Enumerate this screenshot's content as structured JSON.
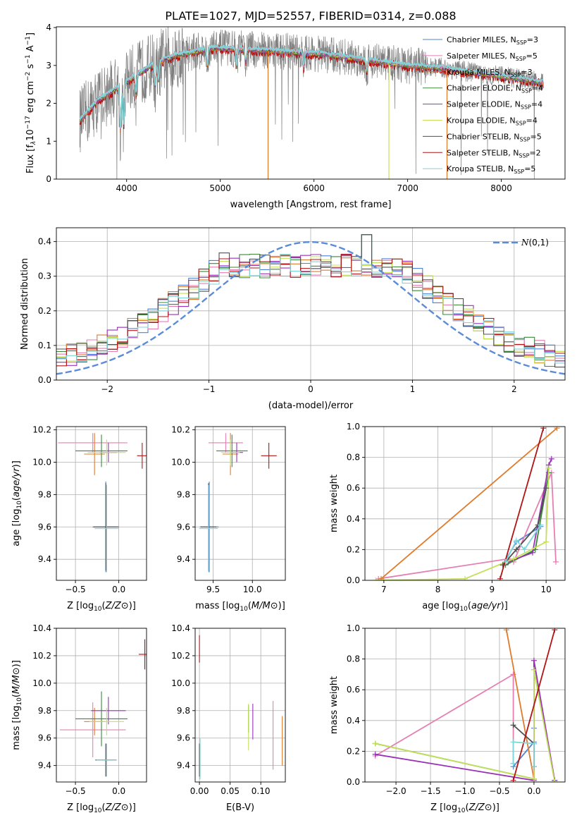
{
  "figure_title": "PLATE=1027, MJD=52557, FIBERID=0314, z=0.088",
  "colors": {
    "Chabrier MILES": "#4f81d8",
    "Salpeter MILES": "#e57fb3",
    "Kroupa MILES": "#e07b2c",
    "Chabrier ELODIE": "#3a8a3a",
    "Salpeter ELODIE": "#9a30b8",
    "Kroupa ELODIE": "#c5e05a",
    "Chabrier STELIB": "#505050",
    "Salpeter STELIB": "#b21414",
    "Kroupa STELIB": "#7fd6d9"
  },
  "chart_data": [
    {
      "id": "spectrum",
      "type": "line",
      "xlabel": "wavelength [Angstrom, rest frame]",
      "ylabel_parts": [
        "Flux [f",
        "λ",
        "10",
        "−17",
        " erg cm",
        "−2",
        " s",
        "−1",
        " A",
        "−1",
        "]"
      ],
      "xlim": [
        3250,
        8680
      ],
      "ylim": [
        0,
        4.02
      ],
      "xticks": [
        4000,
        5000,
        6000,
        7000,
        8000
      ],
      "yticks": [
        0,
        1,
        2,
        3,
        4
      ],
      "legend": [
        {
          "name": "Chabrier MILES",
          "nssp": "3"
        },
        {
          "name": "Salpeter MILES",
          "nssp": "5"
        },
        {
          "name": "Kroupa MILES",
          "nssp": "3"
        },
        {
          "name": "Chabrier ELODIE",
          "nssp": "4"
        },
        {
          "name": "Salpeter ELODIE",
          "nssp": "4"
        },
        {
          "name": "Kroupa ELODIE",
          "nssp": "4"
        },
        {
          "name": "Chabrier STELIB",
          "nssp": "5"
        },
        {
          "name": "Salpeter STELIB",
          "nssp": "2"
        },
        {
          "name": "Kroupa STELIB",
          "nssp": "5"
        }
      ],
      "legend_placement": "right",
      "continuum": {
        "x": [
          3500,
          3700,
          3900,
          4100,
          4300,
          4500,
          4700,
          4900,
          5100,
          5300,
          5500,
          5800,
          6100,
          6400,
          6700,
          7000,
          7300,
          7600,
          7900,
          8200,
          8450
        ],
        "y": [
          1.55,
          2.1,
          2.4,
          2.75,
          3.05,
          3.25,
          3.35,
          3.45,
          3.45,
          3.42,
          3.4,
          3.35,
          3.3,
          3.2,
          3.1,
          3.0,
          2.95,
          2.85,
          2.75,
          2.65,
          2.55
        ]
      },
      "absorption_lines": [
        {
          "x": 3934,
          "depth": 1.2
        },
        {
          "x": 3969,
          "depth": 1.1
        },
        {
          "x": 4102,
          "depth": 0.5
        },
        {
          "x": 4305,
          "depth": 0.6
        },
        {
          "x": 4340,
          "depth": 0.5
        },
        {
          "x": 4861,
          "depth": 0.4
        },
        {
          "x": 5175,
          "depth": 0.5
        },
        {
          "x": 5270,
          "depth": 0.3
        },
        {
          "x": 5890,
          "depth": 0.4
        },
        {
          "x": 6563,
          "depth": 0.3
        }
      ],
      "data_noise": 0.55,
      "spikes": [
        {
          "x": 5510,
          "color": "#e07b2c"
        },
        {
          "x": 6800,
          "color": "#c5e05a"
        },
        {
          "x": 7420,
          "color": "#e07b2c"
        }
      ]
    },
    {
      "id": "residual_hist",
      "type": "step",
      "xlabel": "(data-model)/error",
      "ylabel": "Normed distribution",
      "xlim": [
        -2.5,
        2.5
      ],
      "ylim": [
        0,
        0.44
      ],
      "xticks": [
        -2,
        -1,
        0,
        1,
        2
      ],
      "yticks": [
        0.0,
        0.1,
        0.2,
        0.3,
        0.4
      ],
      "reference_curve": {
        "name": "N(0,1)",
        "color": "#5b8bd8",
        "dash": true
      },
      "bins": {
        "start": -2.5,
        "width": 0.1,
        "count": 50
      },
      "series_jitter": 0.035
    },
    {
      "id": "age_vs_Z",
      "type": "errorbar",
      "xlabel": "Z [log10(Z/Z⊙)]",
      "ylabel": "age  [log10(age/yr)]",
      "xlim": [
        -0.72,
        0.32
      ],
      "ylim": [
        9.27,
        10.22
      ],
      "xticks": [
        -0.5,
        0.0
      ],
      "yticks": [
        9.4,
        9.6,
        9.8,
        10.0,
        10.2
      ],
      "points": [
        {
          "name": "Chabrier MILES",
          "x": -0.15,
          "xerr": 0.14,
          "y": 9.6,
          "yerr": 0.28
        },
        {
          "name": "Salpeter MILES",
          "x": -0.3,
          "xerr": 0.4,
          "y": 10.12,
          "yerr": 0.06
        },
        {
          "name": "Kroupa MILES",
          "x": -0.28,
          "xerr": 0.12,
          "y": 10.05,
          "yerr": 0.13
        },
        {
          "name": "Chabrier ELODIE",
          "x": -0.2,
          "xerr": 0.3,
          "y": 10.07,
          "yerr": 0.1
        },
        {
          "name": "Salpeter ELODIE",
          "x": -0.12,
          "xerr": 0.1,
          "y": 10.06,
          "yerr": 0.06
        },
        {
          "name": "Kroupa ELODIE",
          "x": -0.14,
          "xerr": 0.22,
          "y": 10.06,
          "yerr": 0.08
        },
        {
          "name": "Chabrier STELIB",
          "x": -0.15,
          "xerr": 0.15,
          "y": 9.6,
          "yerr": 0.27
        },
        {
          "name": "Salpeter STELIB",
          "x": 0.27,
          "xerr": 0.06,
          "y": 10.04,
          "yerr": 0.08
        },
        {
          "name": "Kroupa STELIB",
          "x": -0.14,
          "xerr": 0.14,
          "y": 9.59,
          "yerr": 0.27
        }
      ]
    },
    {
      "id": "age_vs_mass",
      "type": "errorbar",
      "xlabel": "mass [log10(M/M⊙)]",
      "ylabel": "",
      "xlim": [
        9.27,
        10.42
      ],
      "ylim": [
        9.27,
        10.22
      ],
      "xticks": [
        9.5,
        10.0
      ],
      "yticks": [
        9.4,
        9.6,
        9.8,
        10.0,
        10.2
      ],
      "points": [
        {
          "name": "Chabrier MILES",
          "x": 9.45,
          "xerr": 0.12,
          "y": 9.6,
          "yerr": 0.28
        },
        {
          "name": "Salpeter MILES",
          "x": 9.66,
          "xerr": 0.22,
          "y": 10.12,
          "yerr": 0.06
        },
        {
          "name": "Kroupa MILES",
          "x": 9.72,
          "xerr": 0.1,
          "y": 10.05,
          "yerr": 0.13
        },
        {
          "name": "Chabrier ELODIE",
          "x": 9.74,
          "xerr": 0.2,
          "y": 10.07,
          "yerr": 0.1
        },
        {
          "name": "Salpeter ELODIE",
          "x": 9.8,
          "xerr": 0.08,
          "y": 10.06,
          "yerr": 0.06
        },
        {
          "name": "Kroupa ELODIE",
          "x": 9.72,
          "xerr": 0.12,
          "y": 10.06,
          "yerr": 0.08
        },
        {
          "name": "Chabrier STELIB",
          "x": 9.44,
          "xerr": 0.1,
          "y": 9.6,
          "yerr": 0.27
        },
        {
          "name": "Salpeter STELIB",
          "x": 10.21,
          "xerr": 0.1,
          "y": 10.04,
          "yerr": 0.08
        },
        {
          "name": "Kroupa STELIB",
          "x": 9.44,
          "xerr": 0.12,
          "y": 9.59,
          "yerr": 0.27
        }
      ]
    },
    {
      "id": "massweight_vs_age",
      "type": "line",
      "xlabel": "age  [log10(age/yr)]",
      "ylabel": "mass weight",
      "xlim": [
        6.65,
        10.35
      ],
      "ylim": [
        0,
        1.0
      ],
      "xticks": [
        7,
        8,
        9,
        10
      ],
      "yticks": [
        0.0,
        0.2,
        0.4,
        0.6,
        0.8,
        1.0
      ],
      "series": [
        {
          "name": "Chabrier MILES",
          "x": [
            9.2,
            9.45,
            9.9
          ],
          "y": [
            0.1,
            0.25,
            0.35
          ]
        },
        {
          "name": "Salpeter MILES",
          "x": [
            6.9,
            9.3,
            9.4,
            10.1,
            10.18
          ],
          "y": [
            0.01,
            0.14,
            0.12,
            0.7,
            0.12
          ]
        },
        {
          "name": "Kroupa MILES",
          "x": [
            6.95,
            10.2
          ],
          "y": [
            0.01,
            0.99
          ]
        },
        {
          "name": "Chabrier ELODIE",
          "x": [
            9.25,
            9.8,
            10.05
          ],
          "y": [
            0.1,
            0.2,
            0.7
          ]
        },
        {
          "name": "Salpeter ELODIE",
          "x": [
            9.3,
            9.75,
            10.05,
            10.1
          ],
          "y": [
            0.12,
            0.18,
            0.75,
            0.79
          ]
        },
        {
          "name": "Kroupa ELODIE",
          "x": [
            6.85,
            8.5,
            9.4,
            10.0,
            10.05
          ],
          "y": [
            0.0,
            0.01,
            0.14,
            0.25,
            0.73
          ]
        },
        {
          "name": "Chabrier STELIB",
          "x": [
            9.2,
            9.45,
            9.85,
            10.0
          ],
          "y": [
            0.1,
            0.2,
            0.36,
            0.6
          ]
        },
        {
          "name": "Salpeter STELIB",
          "x": [
            9.15,
            9.95
          ],
          "y": [
            0.01,
            0.99
          ]
        },
        {
          "name": "Kroupa STELIB",
          "x": [
            9.25,
            9.45,
            9.6,
            9.9
          ],
          "y": [
            0.12,
            0.26,
            0.2,
            0.36
          ]
        }
      ]
    },
    {
      "id": "mass_vs_Z",
      "type": "errorbar",
      "xlabel": "Z [log10(Z/Z⊙)]",
      "ylabel": "mass [log10(M/M⊙)]",
      "xlim": [
        -0.72,
        0.32
      ],
      "ylim": [
        9.28,
        10.4
      ],
      "xticks": [
        -0.5,
        0.0
      ],
      "yticks": [
        9.4,
        9.6,
        9.8,
        10.0,
        10.2,
        10.4
      ],
      "points": [
        {
          "name": "Chabrier MILES",
          "x": -0.15,
          "xerr": 0.12,
          "y": 9.44,
          "yerr": 0.12
        },
        {
          "name": "Salpeter MILES",
          "x": -0.3,
          "xerr": 0.38,
          "y": 9.66,
          "yerr": 0.2
        },
        {
          "name": "Kroupa MILES",
          "x": -0.28,
          "xerr": 0.12,
          "y": 9.72,
          "yerr": 0.1
        },
        {
          "name": "Chabrier ELODIE",
          "x": -0.2,
          "xerr": 0.3,
          "y": 9.74,
          "yerr": 0.2
        },
        {
          "name": "Salpeter ELODIE",
          "x": -0.12,
          "xerr": 0.2,
          "y": 9.8,
          "yerr": 0.1
        },
        {
          "name": "Kroupa ELODIE",
          "x": -0.14,
          "xerr": 0.2,
          "y": 9.72,
          "yerr": 0.1
        },
        {
          "name": "Chabrier STELIB",
          "x": -0.15,
          "xerr": 0.12,
          "y": 9.44,
          "yerr": 0.12
        },
        {
          "name": "Salpeter STELIB",
          "x": 0.3,
          "xerr": 0.07,
          "y": 10.21,
          "yerr": 0.11
        },
        {
          "name": "Kroupa STELIB",
          "x": -0.14,
          "xerr": 0.12,
          "y": 9.44,
          "yerr": 0.12
        }
      ]
    },
    {
      "id": "mass_vs_ebv",
      "type": "errorbar",
      "xlabel": "E(B-V)",
      "ylabel": "",
      "xlim": [
        -0.007,
        0.14
      ],
      "ylim": [
        9.28,
        10.4
      ],
      "xticks": [
        0.0,
        0.05,
        0.1
      ],
      "xtick_labels": [
        "0.00",
        "0.05",
        "0.10"
      ],
      "yticks": [
        9.4,
        9.6,
        9.8,
        10.0,
        10.2,
        10.4
      ],
      "points": [
        {
          "name": "Chabrier MILES",
          "x": 0.0,
          "xerr": 0,
          "y": 9.44,
          "yerr": 0.12
        },
        {
          "name": "Salpeter MILES",
          "x": 0.12,
          "xerr": 0,
          "y": 9.62,
          "yerr": 0.25
        },
        {
          "name": "Kroupa MILES",
          "x": 0.135,
          "xerr": 0,
          "y": 9.58,
          "yerr": 0.18
        },
        {
          "name": "Chabrier ELODIE",
          "x": 0.08,
          "xerr": 0,
          "y": 9.74,
          "yerr": 0.1
        },
        {
          "name": "Salpeter ELODIE",
          "x": 0.087,
          "xerr": 0,
          "y": 9.72,
          "yerr": 0.13
        },
        {
          "name": "Kroupa ELODIE",
          "x": 0.08,
          "xerr": 0,
          "y": 9.68,
          "yerr": 0.17
        },
        {
          "name": "Chabrier STELIB",
          "x": 0.0,
          "xerr": 0,
          "y": 9.44,
          "yerr": 0.12
        },
        {
          "name": "Salpeter STELIB",
          "x": 0.0,
          "xerr": 0,
          "y": 10.25,
          "yerr": 0.1
        },
        {
          "name": "Kroupa STELIB",
          "x": 0.001,
          "xerr": 0,
          "y": 9.45,
          "yerr": 0.15
        }
      ]
    },
    {
      "id": "massweight_vs_Z",
      "type": "line",
      "xlabel": "Z [log10(Z/Z⊙)]",
      "ylabel": "mass weight",
      "xlim": [
        -2.45,
        0.45
      ],
      "ylim": [
        0,
        1.0
      ],
      "xticks": [
        -2.0,
        -1.5,
        -1.0,
        -0.5,
        0.0
      ],
      "yticks": [
        0.0,
        0.2,
        0.4,
        0.6,
        0.8,
        1.0
      ],
      "series": [
        {
          "name": "Chabrier MILES",
          "x": [
            -0.3,
            0.0,
            0.0
          ],
          "y": [
            0.1,
            0.26,
            0.35
          ]
        },
        {
          "name": "Salpeter MILES",
          "x": [
            -2.3,
            -0.3,
            -0.3
          ],
          "y": [
            0.17,
            0.7,
            0.12
          ]
        },
        {
          "name": "Kroupa MILES",
          "x": [
            -0.4,
            0.0
          ],
          "y": [
            0.99,
            0.02
          ]
        },
        {
          "name": "Chabrier ELODIE",
          "x": [
            -2.3,
            0.0,
            0.0,
            0.3
          ],
          "y": [
            0.25,
            0.02,
            0.73,
            0.01
          ]
        },
        {
          "name": "Salpeter ELODIE",
          "x": [
            -2.3,
            0.0,
            0.0,
            0.3
          ],
          "y": [
            0.18,
            0.01,
            0.79,
            0.01
          ]
        },
        {
          "name": "Kroupa ELODIE",
          "x": [
            -2.3,
            0.0,
            0.0,
            0.3
          ],
          "y": [
            0.25,
            0.02,
            0.73,
            0.0
          ]
        },
        {
          "name": "Chabrier STELIB",
          "x": [
            -0.3,
            0.0,
            0.0
          ],
          "y": [
            0.37,
            0.25,
            0.1
          ]
        },
        {
          "name": "Salpeter STELIB",
          "x": [
            -0.3,
            0.3
          ],
          "y": [
            0.01,
            0.99
          ]
        },
        {
          "name": "Kroupa STELIB",
          "x": [
            -0.3,
            -0.3,
            0.0,
            0.0
          ],
          "y": [
            0.12,
            0.26,
            0.25,
            0.1
          ]
        }
      ]
    }
  ]
}
